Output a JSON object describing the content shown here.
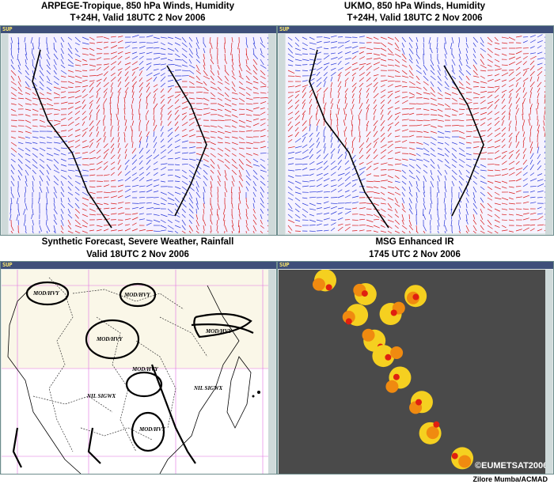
{
  "panels": {
    "top_left": {
      "title_line1": "ARPEGE-Tropique, 850 hPa Winds, Humidity",
      "title_line2": "T+24H, Valid 18UTC  2 Nov 2006",
      "app_logo": "SUP"
    },
    "top_right": {
      "title_line1": "UKMO, 850 hPa Winds, Humidity",
      "title_line2": "T+24H, Valid 18UTC  2 Nov 2006",
      "app_logo": "SUP"
    },
    "bottom_left": {
      "title_line1": "Synthetic Forecast, Severe Weather, Rainfall",
      "title_line2": "Valid 18UTC  2 Nov 2006",
      "app_logo": "SUP",
      "labels": [
        "MOD/HVY",
        "MOD/HVY",
        "MOD/HVY",
        "MOD/HVY",
        "MOD/HVY",
        "MOD/HVY",
        "NIL SIGWX",
        "NIL SIGWX"
      ]
    },
    "bottom_right": {
      "title_line1": "MSG Enhanced IR",
      "title_line2": "1745 UTC 2 Nov 2006",
      "app_logo": "SUP",
      "copyright": "©EUMETSAT2006"
    }
  },
  "author_credit": "Zilore Mumba/ACMAD",
  "colors": {
    "wind_red": "#d81818",
    "wind_blue": "#2838d8",
    "humidity_magenta": "#e020e0",
    "panel_border": "#6d8c8c",
    "titlebar": "#3e4f7a"
  }
}
